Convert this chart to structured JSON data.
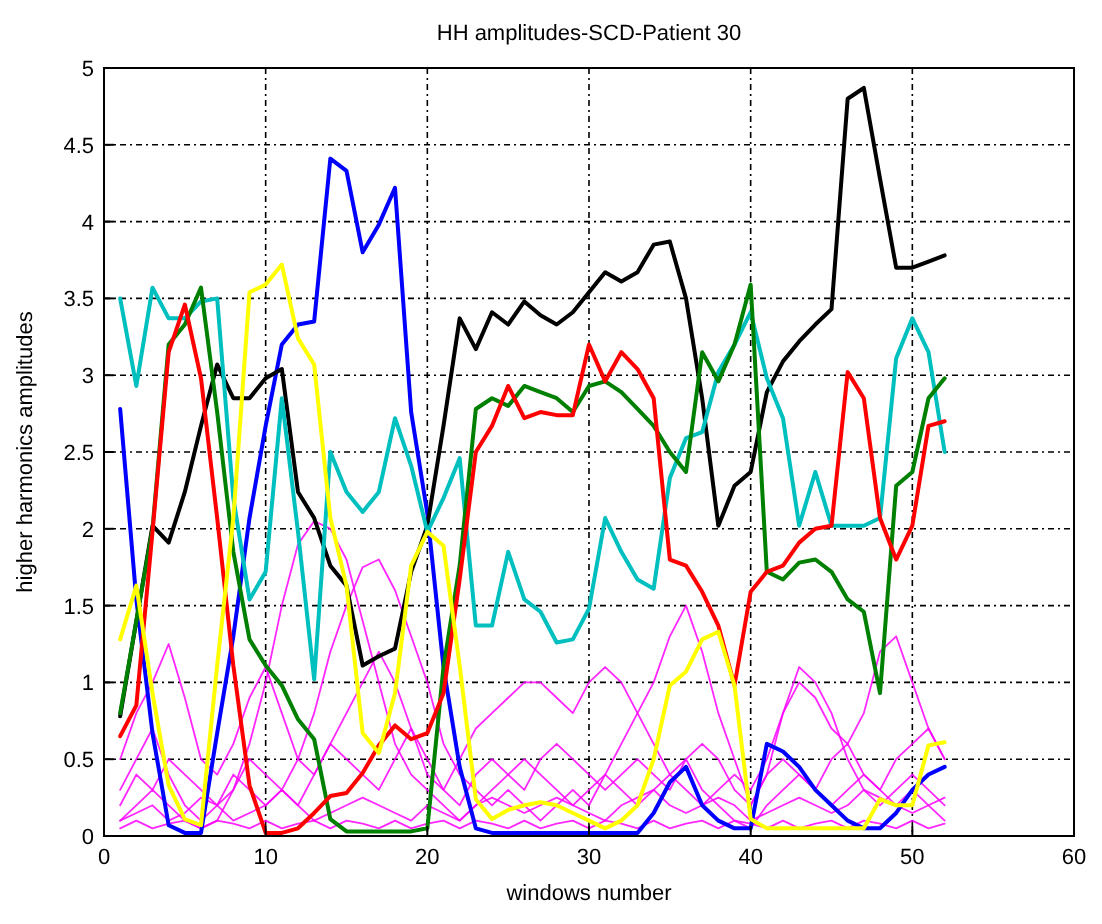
{
  "chart_data": {
    "type": "line",
    "title": "HH amplitudes-SCD-Patient 30",
    "xlabel": "windows number",
    "ylabel": "higher harmonics amplitudes",
    "x": [
      1,
      2,
      3,
      4,
      5,
      6,
      7,
      8,
      9,
      10,
      11,
      12,
      13,
      14,
      15,
      16,
      17,
      18,
      19,
      20,
      21,
      22,
      23,
      24,
      25,
      26,
      27,
      28,
      29,
      30,
      31,
      32,
      33,
      34,
      35,
      36,
      37,
      38,
      39,
      40,
      41,
      42,
      43,
      44,
      45,
      46,
      47,
      48,
      49,
      50,
      51,
      52
    ],
    "xlim": [
      0,
      60
    ],
    "xticks": [
      0,
      10,
      20,
      30,
      40,
      50,
      60
    ],
    "ylim": [
      0,
      5
    ],
    "yticks": [
      0,
      0.5,
      1,
      1.5,
      2,
      2.5,
      3,
      3.5,
      4,
      4.5,
      5
    ],
    "grid": true,
    "marker": "none",
    "line_style": "solid",
    "series": [
      {
        "color": "#ff00ff",
        "values": [
          0.1,
          0.2,
          0.3,
          0.2,
          0.1,
          0.05,
          0.1,
          0.3,
          0.6,
          1.0,
          1.5,
          1.9,
          2.05,
          2.0,
          1.8,
          1.4,
          1.0,
          0.6,
          0.4,
          0.3,
          0.2,
          0.1,
          0.2,
          0.3,
          0.4,
          0.5,
          0.4,
          0.3,
          0.2,
          0.3,
          0.4,
          0.3,
          0.2,
          0.3,
          0.4,
          0.5,
          0.3,
          0.2,
          0.1,
          0.05,
          0.2,
          0.3,
          0.4,
          0.3,
          0.2,
          0.3,
          0.4,
          0.3,
          0.2,
          0.3,
          0.2,
          0.1
        ]
      },
      {
        "color": "#ff00ff",
        "values": [
          0.3,
          0.5,
          0.7,
          0.4,
          0.2,
          0.1,
          0.2,
          0.4,
          0.3,
          0.2,
          0.3,
          0.5,
          0.8,
          1.2,
          1.5,
          1.75,
          1.8,
          1.6,
          1.3,
          1.0,
          0.6,
          0.4,
          0.3,
          0.2,
          0.3,
          0.2,
          0.1,
          0.2,
          0.3,
          0.2,
          0.4,
          0.6,
          0.8,
          1.0,
          1.3,
          1.5,
          1.2,
          0.8,
          0.5,
          0.2,
          0.4,
          0.8,
          1.1,
          1.0,
          0.8,
          0.5,
          0.3,
          0.2,
          0.3,
          0.4,
          0.3,
          0.2
        ]
      },
      {
        "color": "#ff00ff",
        "values": [
          0.5,
          0.8,
          1.0,
          1.25,
          0.9,
          0.5,
          0.4,
          0.6,
          0.9,
          1.1,
          0.8,
          0.5,
          0.4,
          0.6,
          0.8,
          1.0,
          1.2,
          1.0,
          0.7,
          0.4,
          0.3,
          0.5,
          0.7,
          0.8,
          0.9,
          1.0,
          1.0,
          0.9,
          0.8,
          1.0,
          1.1,
          1.0,
          0.8,
          0.6,
          0.4,
          0.3,
          0.2,
          0.3,
          0.4,
          0.3,
          0.5,
          0.8,
          1.0,
          0.9,
          0.7,
          0.6,
          0.8,
          1.2,
          1.3,
          1.0,
          0.7,
          0.5
        ]
      },
      {
        "color": "#ff00ff",
        "values": [
          0.2,
          0.4,
          0.3,
          0.5,
          0.4,
          0.3,
          0.2,
          0.3,
          0.5,
          0.4,
          0.3,
          0.2,
          0.4,
          0.6,
          0.5,
          0.4,
          0.3,
          0.5,
          0.7,
          0.5,
          0.3,
          0.2,
          0.4,
          0.5,
          0.4,
          0.3,
          0.5,
          0.6,
          0.5,
          0.4,
          0.3,
          0.4,
          0.5,
          0.4,
          0.3,
          0.5,
          0.6,
          0.5,
          0.3,
          0.2,
          0.4,
          0.5,
          0.4,
          0.3,
          0.5,
          0.6,
          0.4,
          0.3,
          0.5,
          0.6,
          0.7,
          0.5
        ]
      },
      {
        "color": "#ff00ff",
        "values": [
          0.1,
          0.15,
          0.2,
          0.1,
          0.15,
          0.25,
          0.2,
          0.1,
          0.15,
          0.2,
          0.3,
          0.2,
          0.1,
          0.15,
          0.2,
          0.25,
          0.2,
          0.15,
          0.1,
          0.2,
          0.15,
          0.1,
          0.2,
          0.25,
          0.2,
          0.15,
          0.2,
          0.25,
          0.2,
          0.15,
          0.1,
          0.2,
          0.25,
          0.3,
          0.2,
          0.15,
          0.2,
          0.25,
          0.2,
          0.1,
          0.15,
          0.2,
          0.25,
          0.2,
          0.15,
          0.2,
          0.3,
          0.25,
          0.2,
          0.15,
          0.2,
          0.25
        ]
      },
      {
        "color": "#ff00ff",
        "values": [
          0.05,
          0.1,
          0.05,
          0.08,
          0.1,
          0.05,
          0.1,
          0.08,
          0.05,
          0.1,
          0.05,
          0.08,
          0.1,
          0.05,
          0.1,
          0.08,
          0.05,
          0.1,
          0.05,
          0.08,
          0.1,
          0.05,
          0.1,
          0.08,
          0.05,
          0.1,
          0.05,
          0.08,
          0.1,
          0.05,
          0.1,
          0.08,
          0.05,
          0.1,
          0.05,
          0.08,
          0.1,
          0.05,
          0.1,
          0.08,
          0.05,
          0.1,
          0.05,
          0.08,
          0.1,
          0.05,
          0.1,
          0.08,
          0.05,
          0.1,
          0.05,
          0.08
        ]
      },
      {
        "color": "#0000ff",
        "values": [
          2.78,
          1.54,
          0.67,
          0.07,
          0.02,
          0.02,
          0.67,
          1.3,
          2.07,
          2.67,
          3.2,
          3.33,
          3.35,
          4.41,
          4.33,
          3.8,
          3.98,
          4.22,
          2.76,
          2.1,
          1.1,
          0.45,
          0.05,
          0.02,
          0.02,
          0.02,
          0.02,
          0.02,
          0.02,
          0.02,
          0.02,
          0.02,
          0.02,
          0.15,
          0.35,
          0.45,
          0.2,
          0.1,
          0.05,
          0.05,
          0.6,
          0.55,
          0.45,
          0.3,
          0.2,
          0.1,
          0.05,
          0.05,
          0.15,
          0.3,
          0.4,
          0.45
        ]
      },
      {
        "color": "#000000",
        "values": [
          0.78,
          1.4,
          2.02,
          1.91,
          2.24,
          2.67,
          3.07,
          2.85,
          2.85,
          2.98,
          3.04,
          2.24,
          2.07,
          1.76,
          1.63,
          1.11,
          1.17,
          1.22,
          1.72,
          2.02,
          2.67,
          3.37,
          3.17,
          3.41,
          3.33,
          3.48,
          3.39,
          3.33,
          3.41,
          3.54,
          3.67,
          3.61,
          3.67,
          3.85,
          3.87,
          3.5,
          2.85,
          2.02,
          2.28,
          2.37,
          2.89,
          3.09,
          3.22,
          3.33,
          3.43,
          4.8,
          4.87,
          4.28,
          3.7,
          3.7,
          3.74,
          3.78
        ]
      },
      {
        "color": "#00bfbf",
        "values": [
          3.5,
          2.93,
          3.57,
          3.37,
          3.37,
          3.48,
          3.5,
          2.2,
          1.54,
          1.72,
          2.85,
          1.98,
          1.02,
          2.5,
          2.24,
          2.11,
          2.24,
          2.72,
          2.41,
          1.98,
          2.2,
          2.46,
          1.37,
          1.37,
          1.85,
          1.54,
          1.46,
          1.26,
          1.28,
          1.48,
          2.07,
          1.85,
          1.67,
          1.61,
          2.33,
          2.59,
          2.63,
          3.02,
          3.2,
          3.41,
          2.98,
          2.72,
          2.02,
          2.37,
          2.02,
          2.02,
          2.02,
          2.07,
          3.11,
          3.37,
          3.15,
          2.5
        ]
      },
      {
        "color": "#008000",
        "values": [
          0.8,
          1.4,
          2.0,
          3.2,
          3.33,
          3.57,
          2.76,
          1.85,
          1.28,
          1.11,
          0.98,
          0.76,
          0.63,
          0.11,
          0.03,
          0.03,
          0.03,
          0.03,
          0.03,
          0.05,
          1.1,
          1.76,
          2.78,
          2.85,
          2.8,
          2.93,
          2.89,
          2.85,
          2.76,
          2.93,
          2.96,
          2.89,
          2.78,
          2.67,
          2.5,
          2.37,
          3.15,
          2.96,
          3.2,
          3.59,
          1.72,
          1.67,
          1.78,
          1.8,
          1.72,
          1.54,
          1.46,
          0.93,
          2.28,
          2.37,
          2.85,
          2.98
        ]
      },
      {
        "color": "#ff0000",
        "values": [
          0.65,
          0.85,
          1.98,
          3.15,
          3.46,
          2.98,
          2.07,
          1.11,
          0.33,
          0.02,
          0.02,
          0.05,
          0.15,
          0.26,
          0.28,
          0.41,
          0.59,
          0.72,
          0.63,
          0.67,
          0.93,
          1.67,
          2.5,
          2.67,
          2.93,
          2.72,
          2.76,
          2.74,
          2.74,
          3.2,
          2.96,
          3.15,
          3.04,
          2.85,
          1.8,
          1.76,
          1.59,
          1.37,
          0.98,
          1.59,
          1.72,
          1.76,
          1.91,
          2.0,
          2.02,
          3.02,
          2.85,
          2.07,
          1.8,
          2.02,
          2.67,
          2.7
        ]
      },
      {
        "color": "#ffff00",
        "values": [
          1.28,
          1.63,
          0.93,
          0.33,
          0.11,
          0.07,
          1.11,
          2.07,
          3.54,
          3.59,
          3.72,
          3.24,
          3.07,
          2.07,
          1.63,
          0.67,
          0.54,
          0.93,
          1.76,
          1.98,
          1.89,
          1.11,
          0.24,
          0.11,
          0.17,
          0.2,
          0.22,
          0.2,
          0.15,
          0.1,
          0.05,
          0.1,
          0.2,
          0.5,
          0.98,
          1.07,
          1.28,
          1.33,
          0.98,
          0.11,
          0.05,
          0.05,
          0.05,
          0.05,
          0.05,
          0.05,
          0.05,
          0.24,
          0.2,
          0.2,
          0.59,
          0.61
        ]
      }
    ]
  }
}
